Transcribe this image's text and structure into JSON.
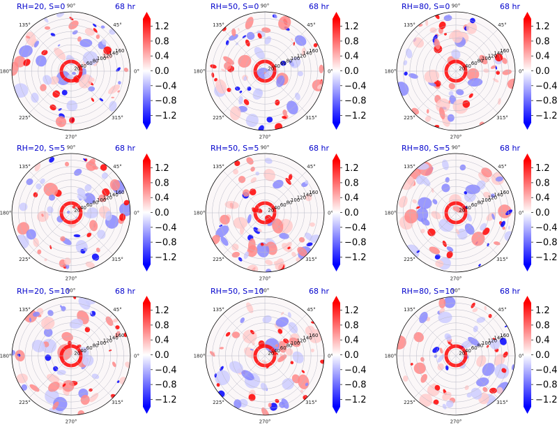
{
  "chart_data": [
    {
      "type": "heatmap",
      "title": "RH=20, S=0",
      "time_label": "68 hr"
    },
    {
      "type": "heatmap",
      "title": "RH=50, S=0",
      "time_label": "68 hr"
    },
    {
      "type": "heatmap",
      "title": "RH=80, S=0",
      "time_label": "68 hr"
    },
    {
      "type": "heatmap",
      "title": "RH=20, S=5",
      "time_label": "68 hr"
    },
    {
      "type": "heatmap",
      "title": "RH=50, S=5",
      "time_label": "68 hr"
    },
    {
      "type": "heatmap",
      "title": "RH=80, S=5",
      "time_label": "68 hr"
    },
    {
      "type": "heatmap",
      "title": "RH=20, S=10",
      "time_label": "68 hr"
    },
    {
      "type": "heatmap",
      "title": "RH=50, S=10",
      "time_label": "68 hr"
    },
    {
      "type": "heatmap",
      "title": "RH=80, S=10",
      "time_label": "68 hr"
    }
  ],
  "polar_axis": {
    "angle_labels": [
      "0°",
      "45°",
      "90°",
      "135°",
      "180°",
      "225°",
      "270°",
      "315°"
    ],
    "angle_values": [
      0,
      45,
      90,
      135,
      180,
      225,
      270,
      315
    ],
    "radial_labels": [
      "20",
      "40",
      "60",
      "80",
      "100",
      "120",
      "140",
      "160"
    ],
    "radial_values": [
      20,
      40,
      60,
      80,
      100,
      120,
      140,
      160
    ],
    "rmax": 180,
    "label_angle": 22.5
  },
  "colorbar": {
    "ticks": [
      "1.2",
      "0.8",
      "0.4",
      "0.0",
      "−0.4",
      "−0.8",
      "−1.2"
    ],
    "tick_values": [
      1.2,
      0.8,
      0.4,
      0.0,
      -0.4,
      -0.8,
      -1.2
    ],
    "vmin": -1.4,
    "vmax": 1.4,
    "colormap": "bwr",
    "extend": "both",
    "colors": {
      "low": "#0000ff",
      "mid": "#ffffff",
      "high": "#ff0000"
    }
  }
}
